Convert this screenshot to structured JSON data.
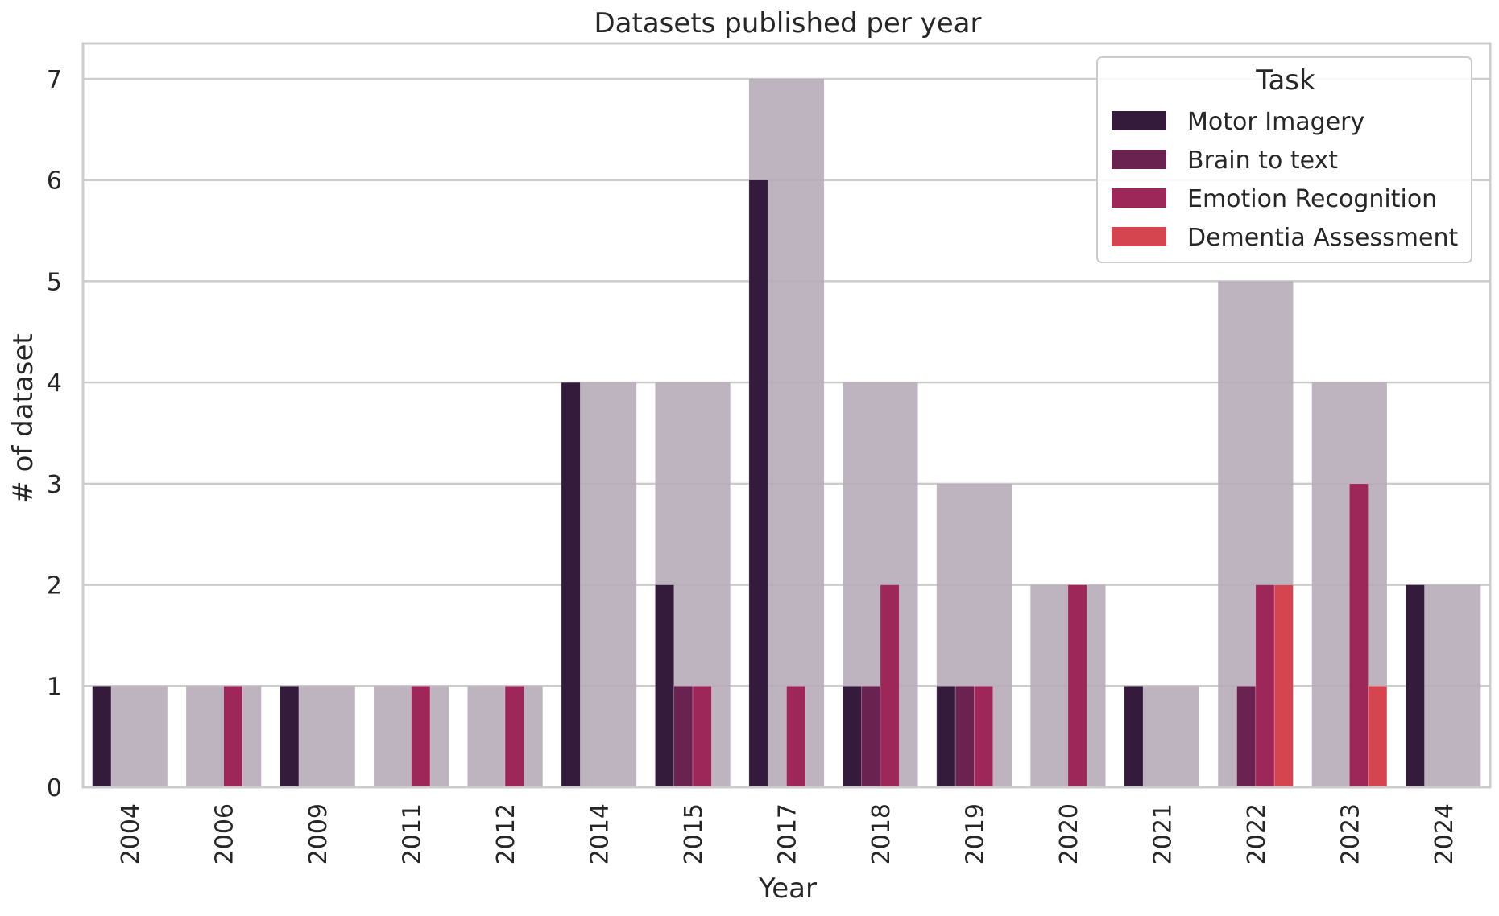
{
  "chart_data": {
    "type": "bar",
    "title": "Datasets published per year",
    "xlabel": "Year",
    "ylabel": "# of dataset",
    "ylim": [
      0,
      7.35
    ],
    "yticks": [
      0,
      1,
      2,
      3,
      4,
      5,
      6,
      7
    ],
    "grid": true,
    "legend": {
      "title": "Task",
      "placement": "top-right"
    },
    "categories": [
      "2004",
      "2006",
      "2009",
      "2011",
      "2012",
      "2014",
      "2015",
      "2017",
      "2018",
      "2019",
      "2020",
      "2021",
      "2022",
      "2023",
      "2024"
    ],
    "totals": [
      1,
      1,
      1,
      1,
      1,
      4,
      4,
      7,
      4,
      3,
      2,
      1,
      5,
      4,
      2
    ],
    "total_color": "#b7acb8",
    "series": [
      {
        "name": "Motor Imagery",
        "color": "#341a3b",
        "values": [
          1,
          0,
          1,
          0,
          0,
          4,
          2,
          6,
          1,
          1,
          0,
          1,
          0,
          0,
          2
        ]
      },
      {
        "name": "Brain to text",
        "color": "#6a2350",
        "values": [
          0,
          0,
          0,
          0,
          0,
          0,
          1,
          0,
          1,
          1,
          0,
          0,
          1,
          0,
          0
        ]
      },
      {
        "name": "Emotion Recognition",
        "color": "#9e2759",
        "values": [
          0,
          1,
          0,
          1,
          1,
          0,
          1,
          1,
          2,
          1,
          2,
          0,
          2,
          3,
          0
        ]
      },
      {
        "name": "Dementia Assessment",
        "color": "#d44550",
        "values": [
          0,
          0,
          0,
          0,
          0,
          0,
          0,
          0,
          0,
          0,
          0,
          0,
          2,
          1,
          0
        ]
      }
    ]
  }
}
